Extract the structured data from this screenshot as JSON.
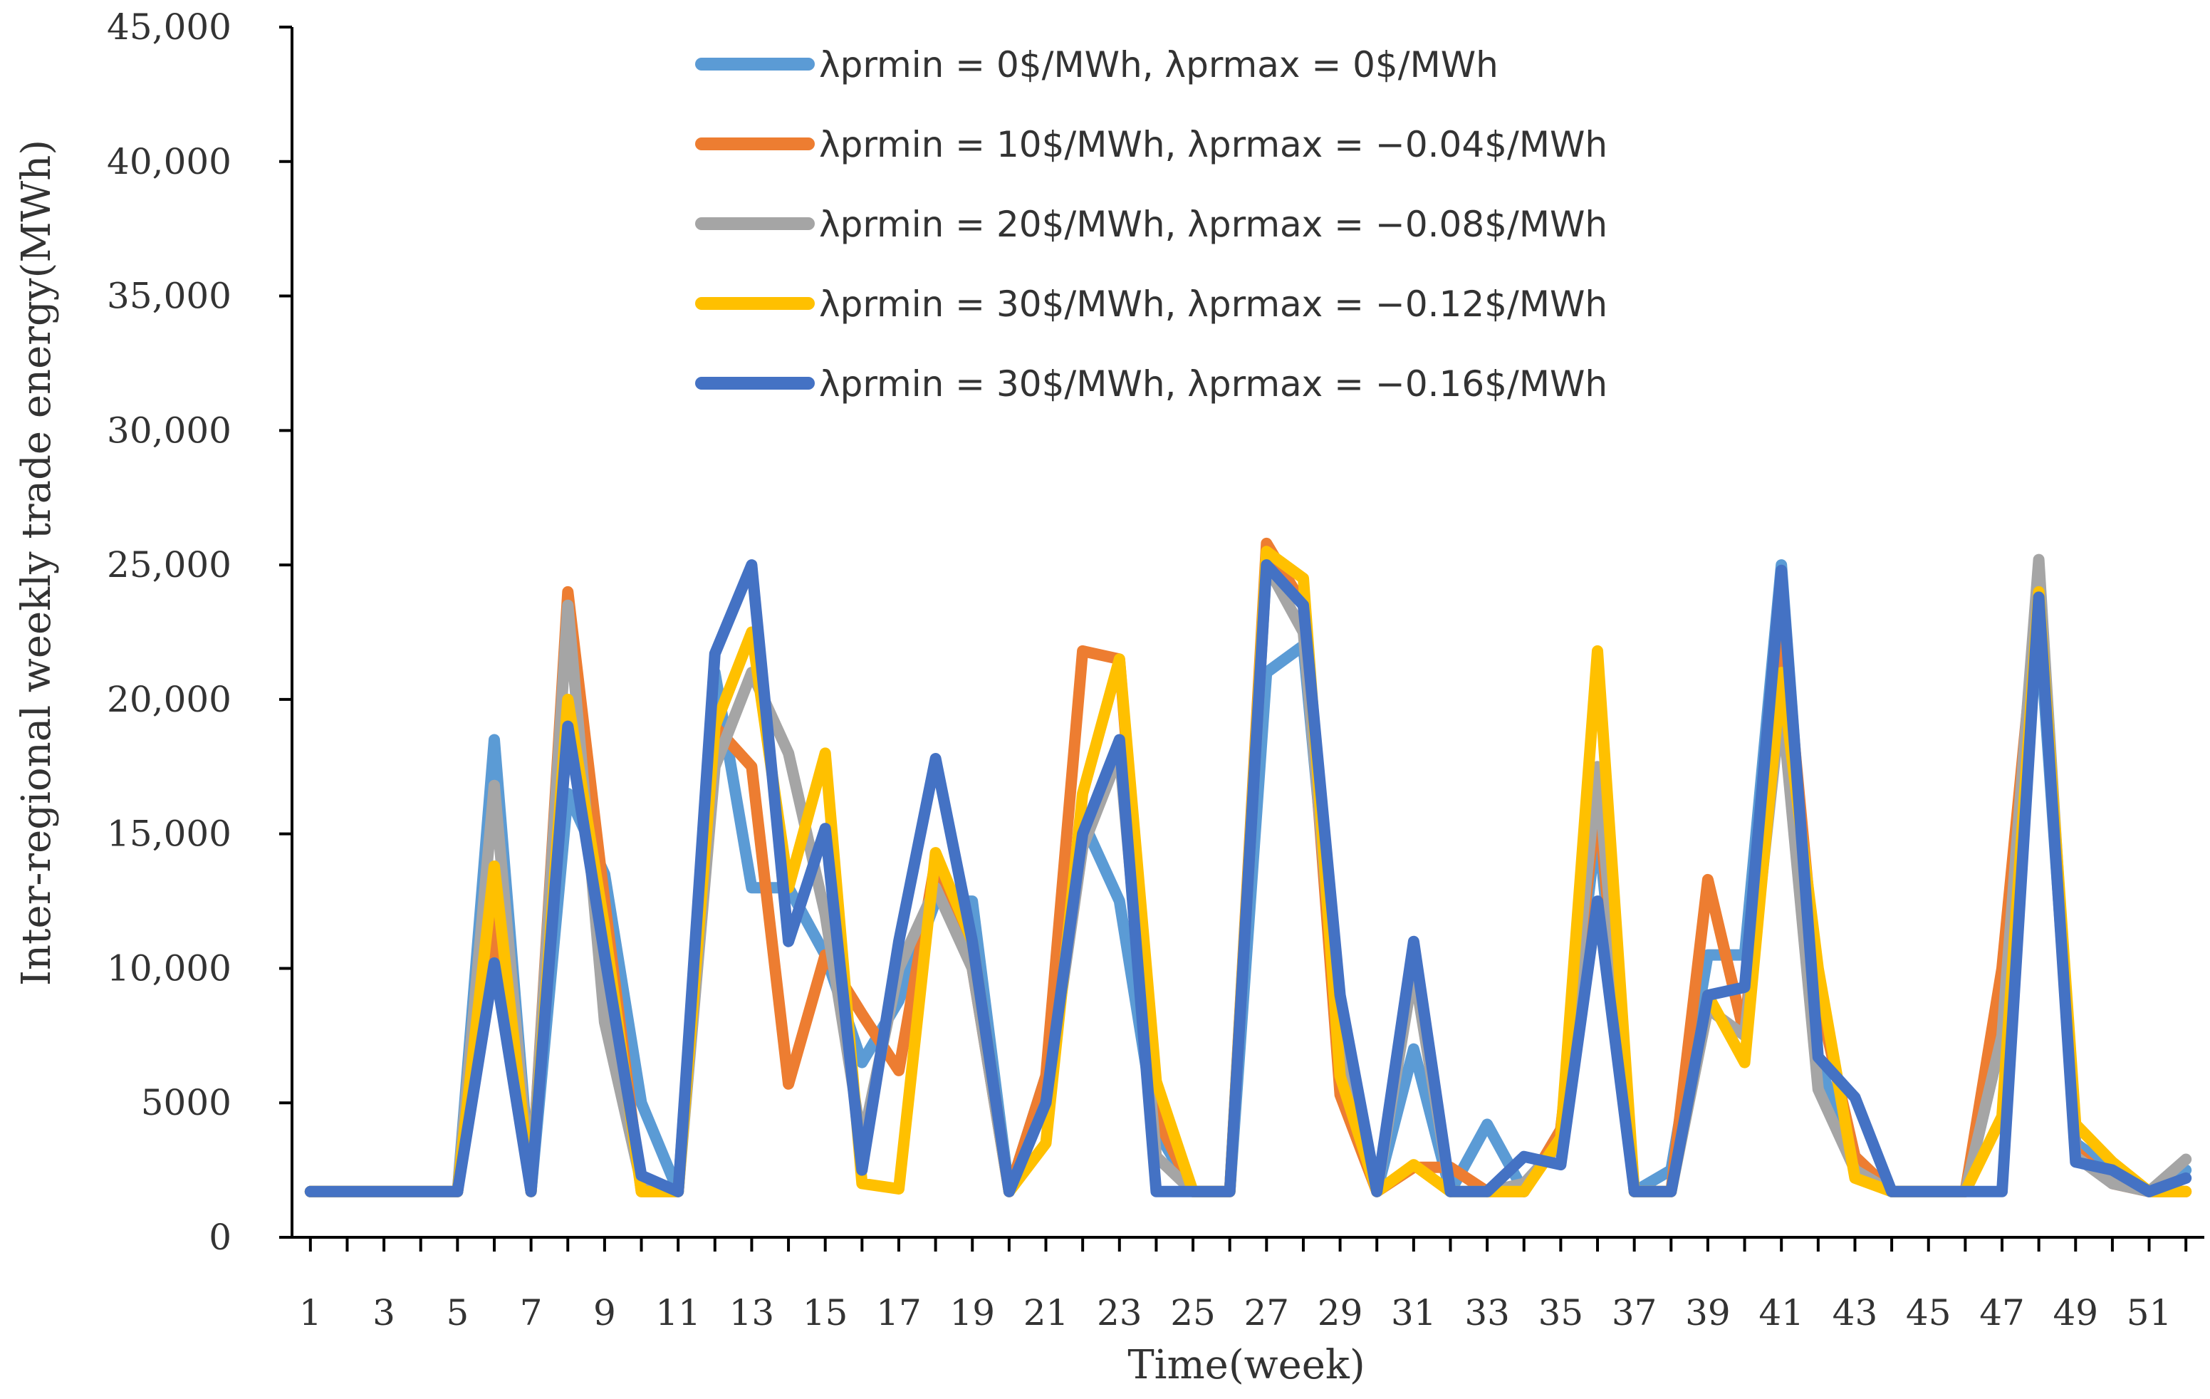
{
  "chart_data": {
    "type": "line",
    "title": "",
    "xlabel": "Time(week)",
    "ylabel": "Inter-regional weekly trade energy(MWh)",
    "xlim": [
      0.5,
      52.5
    ],
    "ylim": [
      0,
      45000
    ],
    "grid": false,
    "legend_position": "top",
    "x": [
      1,
      2,
      3,
      4,
      5,
      6,
      7,
      8,
      9,
      10,
      11,
      12,
      13,
      14,
      15,
      16,
      17,
      18,
      19,
      20,
      21,
      22,
      23,
      24,
      25,
      26,
      27,
      28,
      29,
      30,
      31,
      32,
      33,
      34,
      35,
      36,
      37,
      38,
      39,
      40,
      41,
      42,
      43,
      44,
      45,
      46,
      47,
      48,
      49,
      50,
      51,
      52
    ],
    "x_tick_labels": [
      "1",
      "3",
      "5",
      "7",
      "9",
      "11",
      "13",
      "15",
      "17",
      "19",
      "21",
      "23",
      "25",
      "27",
      "29",
      "31",
      "33",
      "35",
      "37",
      "39",
      "41",
      "43",
      "45",
      "47",
      "49",
      "51"
    ],
    "y_ticks": [
      {
        "value": 0,
        "label": "0"
      },
      {
        "value": 5000,
        "label": "5000"
      },
      {
        "value": 10000,
        "label": "10,000"
      },
      {
        "value": 15000,
        "label": "15,000"
      },
      {
        "value": 20000,
        "label": "20,000"
      },
      {
        "value": 25000,
        "label": "25,000"
      },
      {
        "value": 30000,
        "label": "30,000"
      },
      {
        "value": 35000,
        "label": "35,000"
      },
      {
        "value": 40000,
        "label": "40,000"
      },
      {
        "value": 45000,
        "label": "45,000"
      }
    ],
    "series": [
      {
        "name": "λprmin = 0$/MWh, λprmax = 0$/MWh",
        "color": "#5B9BD5",
        "values": [
          1700,
          1700,
          1700,
          1700,
          1700,
          18500,
          1700,
          16500,
          13500,
          5000,
          1700,
          21000,
          13000,
          13000,
          10500,
          6500,
          8800,
          12500,
          12500,
          1700,
          6000,
          15500,
          12500,
          4000,
          1700,
          1700,
          21000,
          22000,
          7500,
          1700,
          7000,
          1700,
          4200,
          1700,
          4000,
          15500,
          1700,
          2500,
          10500,
          10500,
          25000,
          6500,
          3000,
          1700,
          1700,
          1700,
          7500,
          23000,
          3500,
          2500,
          1700,
          2500
        ]
      },
      {
        "name": "λprmin = 10$/MWh, λprmax = −0.04$/MWh",
        "color": "#ED7D31",
        "values": [
          1700,
          1700,
          1700,
          1700,
          1700,
          12000,
          1700,
          24000,
          12500,
          1700,
          1700,
          19000,
          17500,
          5700,
          10500,
          8300,
          6200,
          14000,
          10000,
          1700,
          6000,
          21800,
          21500,
          4500,
          1700,
          1700,
          25800,
          23500,
          5300,
          1700,
          2600,
          2600,
          1700,
          1700,
          4000,
          16500,
          1700,
          1700,
          13300,
          7500,
          23500,
          9000,
          3000,
          1700,
          1700,
          1700,
          10000,
          24000,
          3200,
          2000,
          1700,
          1700
        ]
      },
      {
        "name": "λprmin = 20$/MWh, λprmax = −0.08$/MWh",
        "color": "#A5A5A5",
        "values": [
          1700,
          1700,
          1700,
          1700,
          1700,
          16800,
          1700,
          23500,
          8000,
          2000,
          1700,
          17500,
          21000,
          18000,
          12000,
          3500,
          10000,
          13000,
          10000,
          1700,
          5000,
          14500,
          18000,
          3000,
          1700,
          1700,
          25000,
          22500,
          7000,
          1700,
          10000,
          1700,
          1700,
          2000,
          3500,
          17500,
          1700,
          1700,
          8500,
          7500,
          20000,
          5500,
          2500,
          1700,
          1700,
          1700,
          7500,
          25200,
          3000,
          2000,
          1700,
          2900
        ]
      },
      {
        "name": "λprmin = 30$/MWh, λprmax = −0.12$/MWh",
        "color": "#FFC000",
        "values": [
          1700,
          1700,
          1700,
          1700,
          1700,
          13800,
          1700,
          20000,
          11500,
          1700,
          1700,
          19000,
          22500,
          13000,
          18000,
          2000,
          1800,
          14300,
          11000,
          1700,
          3500,
          16500,
          21500,
          5800,
          1700,
          1700,
          25500,
          24500,
          6000,
          1700,
          2700,
          1700,
          1700,
          1700,
          3700,
          21800,
          1700,
          1700,
          9000,
          6500,
          21000,
          10000,
          2200,
          1700,
          1700,
          1700,
          4500,
          24000,
          4200,
          2800,
          1700,
          1700
        ]
      },
      {
        "name": "λprmin = 30$/MWh, λprmax = −0.16$/MWh",
        "color": "#4472C4",
        "values": [
          1700,
          1700,
          1700,
          1700,
          1700,
          10200,
          1700,
          19000,
          10500,
          2300,
          1700,
          21700,
          25000,
          11000,
          15200,
          2500,
          11000,
          17800,
          11000,
          1700,
          5000,
          15000,
          18500,
          1700,
          1700,
          1700,
          25000,
          23500,
          9000,
          1700,
          11000,
          1700,
          1700,
          3000,
          2700,
          12500,
          1700,
          1700,
          9000,
          9300,
          24800,
          6700,
          5200,
          1700,
          1700,
          1700,
          1700,
          23800,
          2800,
          2500,
          1700,
          2200
        ]
      }
    ]
  }
}
